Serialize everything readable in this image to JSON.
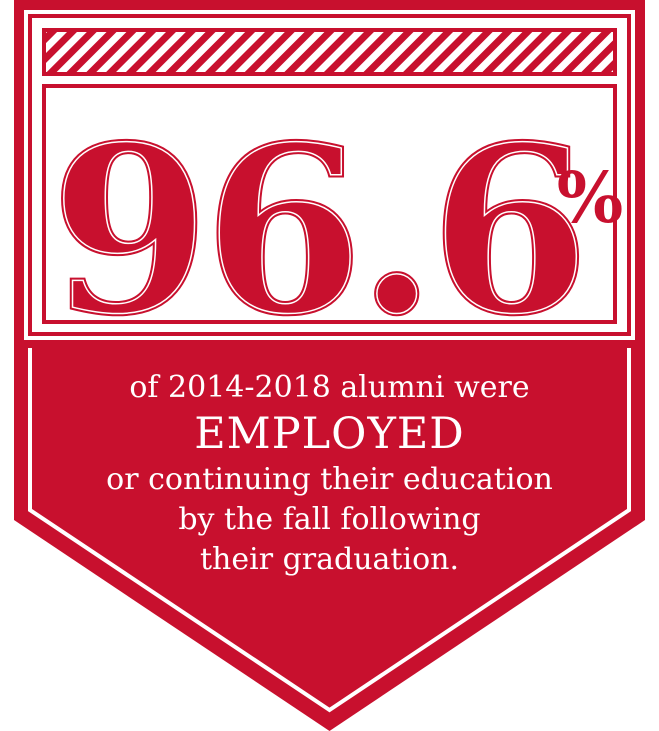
{
  "stat": {
    "number": "96.6",
    "percent": "%"
  },
  "caption": {
    "line1": "of 2014-2018 alumni were",
    "emphasis": "EMPLOYED",
    "line2": "or continuing their education",
    "line3": "by the fall following",
    "line4": "their graduation."
  },
  "colors": {
    "brand_red": "#c8102e",
    "background": "#ffffff",
    "text_light": "#ffffff"
  },
  "icons": {
    "shield": "shield-badge-icon",
    "stripes": "diagonal-stripes-icon"
  }
}
